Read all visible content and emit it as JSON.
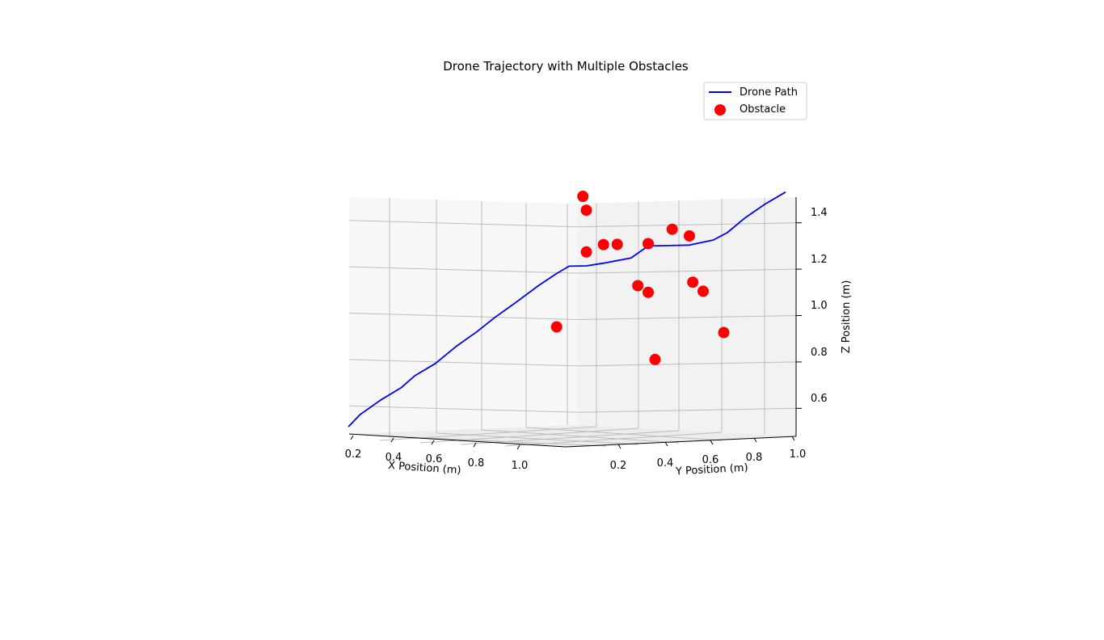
{
  "chart_data": {
    "type": "line",
    "projection": "3d",
    "title": "Drone Trajectory with Multiple Obstacles",
    "xlabel": "X Position (m)",
    "ylabel": "Y Position (m)",
    "zlabel": "Z Position (m)",
    "x_ticks": [
      "0.2",
      "0.4",
      "0.6",
      "0.8",
      "1.0"
    ],
    "y_ticks": [
      "0.2",
      "0.4",
      "0.6",
      "0.8",
      "1.0"
    ],
    "z_ticks": [
      "0.6",
      "0.8",
      "1.0",
      "1.2",
      "1.4"
    ],
    "zlim": [
      0.45,
      1.45
    ],
    "grid": true,
    "legend": {
      "placement": "top-right",
      "entries": [
        {
          "label": "Drone Path",
          "color": "#0000ff",
          "marker": "line"
        },
        {
          "label": "Obstacle",
          "color": "#ff0000",
          "marker": "circle"
        }
      ]
    },
    "series": [
      {
        "name": "Drone Path",
        "color": "#0000ff",
        "points": [
          {
            "x": 0.11,
            "y": 0.0,
            "z": 0.51
          },
          {
            "x": 0.16,
            "y": 0.0,
            "z": 0.56
          },
          {
            "x": 0.25,
            "y": 0.0,
            "z": 0.62
          },
          {
            "x": 0.34,
            "y": 0.0,
            "z": 0.67
          },
          {
            "x": 0.4,
            "y": 0.0,
            "z": 0.72
          },
          {
            "x": 0.49,
            "y": 0.0,
            "z": 0.77
          },
          {
            "x": 0.58,
            "y": 0.0,
            "z": 0.84
          },
          {
            "x": 0.67,
            "y": 0.0,
            "z": 0.9
          },
          {
            "x": 0.75,
            "y": 0.0,
            "z": 0.96
          },
          {
            "x": 0.84,
            "y": 0.0,
            "z": 1.02
          },
          {
            "x": 0.94,
            "y": 0.0,
            "z": 1.09
          },
          {
            "x": 1.02,
            "y": 0.0,
            "z": 1.14
          },
          {
            "x": 1.06,
            "y": 0.01,
            "z": 1.17
          },
          {
            "x": 1.06,
            "y": 0.06,
            "z": 1.17
          },
          {
            "x": 1.06,
            "y": 0.11,
            "z": 1.18
          },
          {
            "x": 1.06,
            "y": 0.19,
            "z": 1.2
          },
          {
            "x": 1.06,
            "y": 0.24,
            "z": 1.25
          },
          {
            "x": 1.06,
            "y": 0.3,
            "z": 1.25
          },
          {
            "x": 1.06,
            "y": 0.36,
            "z": 1.25
          },
          {
            "x": 1.06,
            "y": 0.43,
            "z": 1.27
          },
          {
            "x": 1.06,
            "y": 0.47,
            "z": 1.3
          },
          {
            "x": 1.06,
            "y": 0.52,
            "z": 1.36
          },
          {
            "x": 1.06,
            "y": 0.58,
            "z": 1.42
          },
          {
            "x": 1.06,
            "y": 0.64,
            "z": 1.47
          }
        ]
      },
      {
        "name": "Obstacle",
        "color": "#ff0000",
        "type": "scatter",
        "points": [
          {
            "x": 1.06,
            "y": 0.05,
            "z": 1.47
          },
          {
            "x": 1.06,
            "y": 0.06,
            "z": 1.41
          },
          {
            "x": 1.06,
            "y": 0.06,
            "z": 1.23
          },
          {
            "x": 1.06,
            "y": 0.11,
            "z": 1.26
          },
          {
            "x": 1.06,
            "y": 0.15,
            "z": 1.26
          },
          {
            "x": 1.06,
            "y": 0.24,
            "z": 1.26
          },
          {
            "x": 1.06,
            "y": 0.31,
            "z": 1.32
          },
          {
            "x": 1.06,
            "y": 0.36,
            "z": 1.29
          },
          {
            "x": 1.06,
            "y": 0.21,
            "z": 1.08
          },
          {
            "x": 1.06,
            "y": 0.24,
            "z": 1.05
          },
          {
            "x": 1.06,
            "y": 0.37,
            "z": 1.09
          },
          {
            "x": 1.06,
            "y": 0.4,
            "z": 1.05
          },
          {
            "x": 1.02,
            "y": 0.0,
            "z": 0.91
          },
          {
            "x": 1.06,
            "y": 0.26,
            "z": 0.76
          },
          {
            "x": 1.06,
            "y": 0.46,
            "z": 0.87
          }
        ]
      }
    ]
  }
}
